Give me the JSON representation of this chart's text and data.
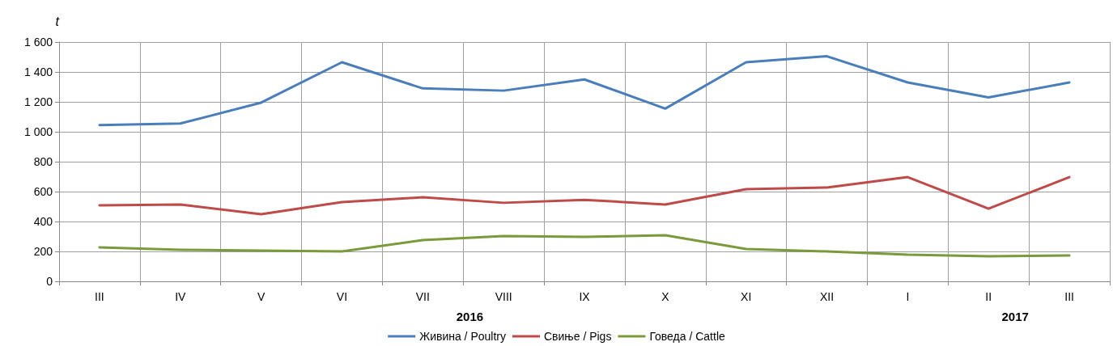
{
  "chart_data": {
    "type": "line",
    "ylabel": "t",
    "categories": [
      "III",
      "IV",
      "V",
      "VI",
      "VII",
      "VIII",
      "IX",
      "X",
      "XI",
      "XII",
      "I",
      "II",
      "III"
    ],
    "series": [
      {
        "name": "Живина / Poultry",
        "color": "#4a7ebb",
        "values": [
          1045,
          1055,
          1195,
          1465,
          1290,
          1275,
          1350,
          1155,
          1465,
          1505,
          1330,
          1230,
          1330
        ]
      },
      {
        "name": "Свиње / Pigs",
        "color": "#be4b48",
        "values": [
          508,
          514,
          449,
          530,
          562,
          525,
          545,
          514,
          616,
          627,
          697,
          486,
          697
        ]
      },
      {
        "name": "Говеда / Cattle",
        "color": "#7a9a3b",
        "values": [
          227,
          211,
          205,
          200,
          276,
          303,
          297,
          308,
          216,
          200,
          178,
          168,
          173
        ]
      }
    ],
    "ylim": [
      0,
      1600
    ],
    "yticks": [
      0,
      200,
      400,
      600,
      800,
      {
        "value": 1000,
        "label": "1 000"
      },
      {
        "value": 1200,
        "label": "1 200"
      },
      {
        "value": 1400,
        "label": "1 400"
      },
      {
        "value": 1600,
        "label": "1 600"
      }
    ],
    "annotations": [
      "2016",
      "2017"
    ],
    "grid": true,
    "legend": "bottom",
    "marker": "none",
    "line_style": "solid"
  }
}
